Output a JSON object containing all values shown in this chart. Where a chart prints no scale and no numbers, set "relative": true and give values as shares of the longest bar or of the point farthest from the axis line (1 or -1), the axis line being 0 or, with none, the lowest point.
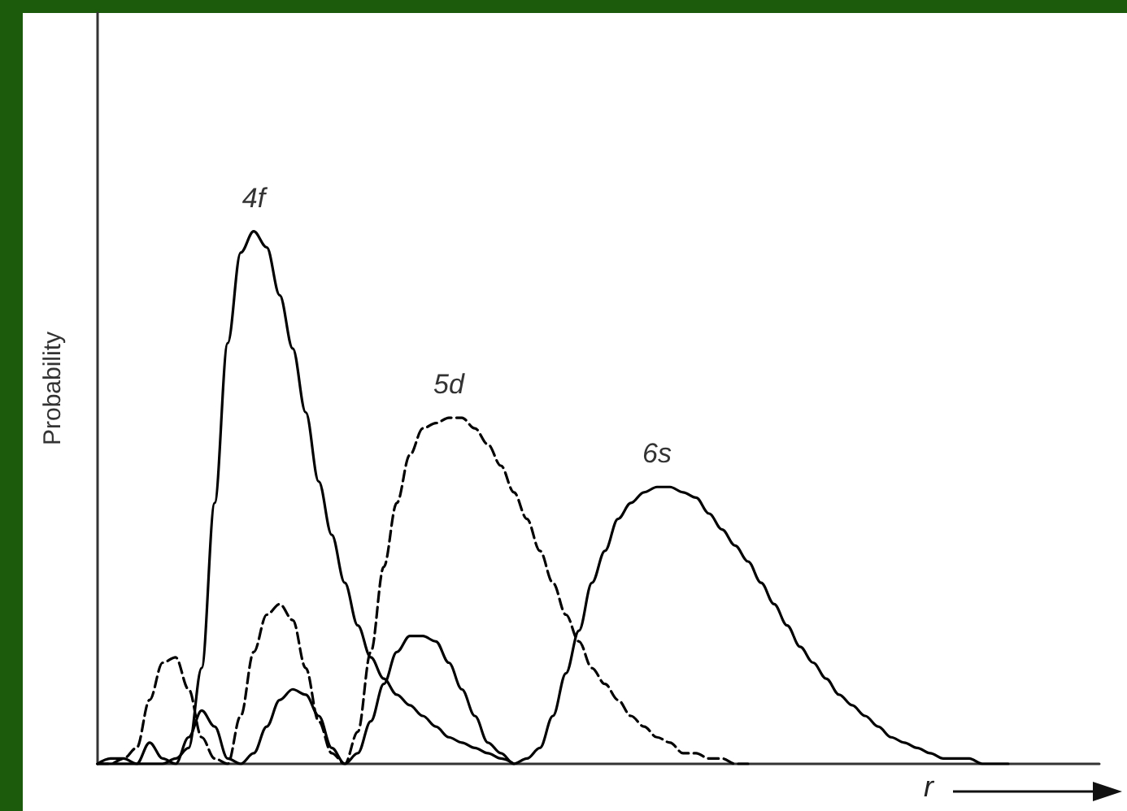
{
  "chart_data": {
    "type": "line",
    "relative": true,
    "xlabel": "r",
    "ylabel": "Probability",
    "grid": false,
    "legend": false,
    "marker": "none",
    "categories": [
      null,
      null,
      null,
      null,
      null,
      null,
      null,
      null,
      null,
      null,
      null,
      null,
      null,
      null,
      null,
      null,
      null,
      null,
      null,
      null,
      null,
      null,
      null,
      null,
      null,
      null,
      null,
      null,
      null,
      null,
      null,
      null,
      null,
      null,
      null,
      null,
      null,
      null,
      null,
      null,
      null,
      null,
      null,
      null,
      null,
      null,
      null,
      null,
      null,
      null,
      null,
      null,
      null,
      null,
      null,
      null,
      null,
      null,
      null,
      null,
      null,
      null,
      null,
      null,
      null,
      null,
      null,
      null,
      null,
      null,
      null,
      null,
      null,
      null,
      null,
      null,
      null,
      null
    ],
    "series": [
      {
        "name": "4f",
        "color": "#000000",
        "line_style": "solid",
        "values": [
          0,
          0,
          0,
          0,
          0,
          0,
          0.01,
          0.03,
          0.18,
          0.49,
          0.79,
          0.96,
          1,
          0.97,
          0.88,
          0.78,
          0.66,
          0.53,
          0.43,
          0.34,
          0.26,
          0.2,
          0.16,
          0.13,
          0.11,
          0.09,
          0.07,
          0.05,
          0.04,
          0.03,
          0.02,
          0.01,
          0,
          null,
          null,
          null,
          null,
          null,
          null,
          null,
          null,
          null,
          null,
          null,
          null,
          null,
          null,
          null,
          null,
          null,
          null,
          null,
          null,
          null,
          null,
          null,
          null,
          null,
          null,
          null,
          null,
          null,
          null,
          null,
          null,
          null,
          null,
          null,
          null,
          null,
          null,
          null,
          null,
          null,
          null,
          null,
          null,
          null
        ]
      },
      {
        "name": "5d",
        "color": "#000000",
        "line_style": "dashed",
        "values": [
          0,
          0,
          0.01,
          0.03,
          0.12,
          0.19,
          0.2,
          0.14,
          0.05,
          0.01,
          0,
          0.09,
          0.21,
          0.28,
          0.3,
          0.27,
          0.18,
          0.08,
          0.02,
          0,
          0.06,
          0.21,
          0.37,
          0.49,
          0.58,
          0.63,
          0.64,
          0.65,
          0.65,
          0.63,
          0.6,
          0.56,
          0.51,
          0.46,
          0.4,
          0.34,
          0.28,
          0.23,
          0.18,
          0.15,
          0.12,
          0.09,
          0.07,
          0.05,
          0.04,
          0.02,
          0.02,
          0.01,
          0.01,
          0,
          0,
          null,
          null,
          null,
          null,
          null,
          null,
          null,
          null,
          null,
          null,
          null,
          null,
          null,
          null,
          null,
          null,
          null,
          null,
          null,
          null,
          null,
          null,
          null,
          null,
          null,
          null,
          null
        ]
      },
      {
        "name": "6s",
        "color": "#000000",
        "line_style": "solid",
        "values": [
          0,
          0.01,
          0.01,
          0,
          0.04,
          0.01,
          0,
          0.05,
          0.1,
          0.07,
          0.01,
          0,
          0.02,
          0.07,
          0.12,
          0.14,
          0.13,
          0.09,
          0.03,
          0,
          0.02,
          0.08,
          0.15,
          0.21,
          0.24,
          0.24,
          0.23,
          0.19,
          0.14,
          0.09,
          0.04,
          0.02,
          0,
          0.01,
          0.03,
          0.09,
          0.17,
          0.25,
          0.34,
          0.4,
          0.46,
          0.49,
          0.51,
          0.52,
          0.52,
          0.51,
          0.5,
          0.47,
          0.44,
          0.41,
          0.38,
          0.34,
          0.3,
          0.26,
          0.22,
          0.19,
          0.16,
          0.13,
          0.11,
          0.09,
          0.07,
          0.05,
          0.04,
          0.03,
          0.02,
          0.01,
          0.01,
          0.01,
          0,
          0,
          0,
          null,
          null,
          null,
          null,
          null,
          null,
          null
        ]
      }
    ]
  }
}
